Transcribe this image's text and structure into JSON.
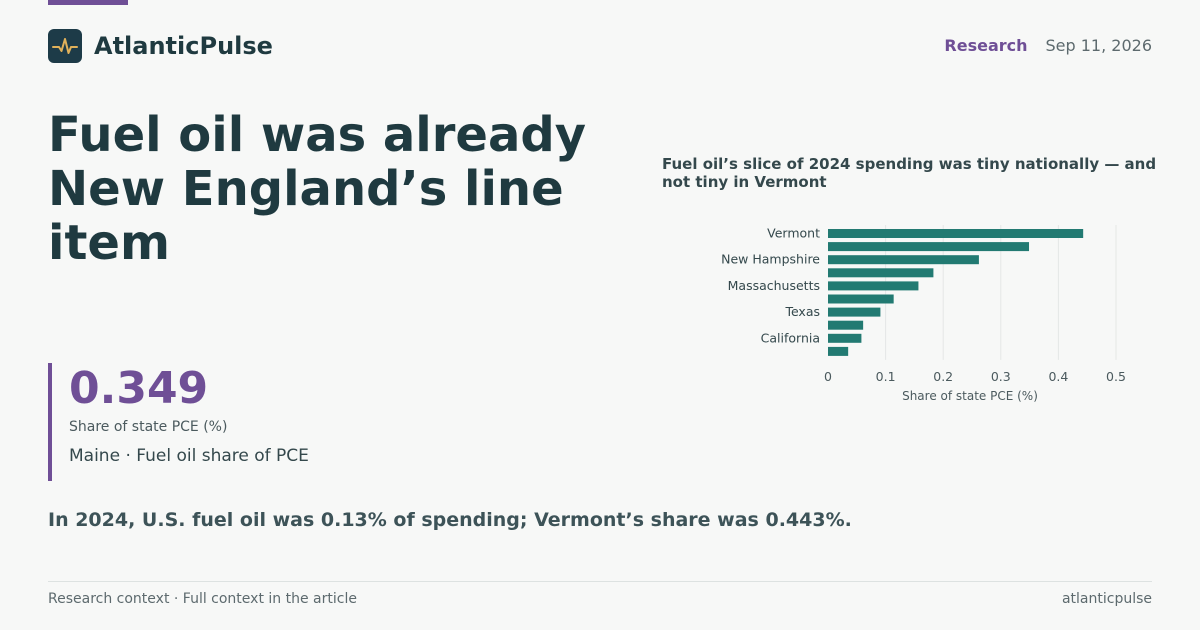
{
  "header": {
    "brand": "AtlanticPulse",
    "section": "Research",
    "date": "Sep 11, 2026",
    "logo_icon": "pulse-icon"
  },
  "headline": "Fuel oil was already New England’s line item",
  "stat": {
    "value": "0.349",
    "unit": "Share of state PCE (%)",
    "label": "Maine · Fuel oil share of PCE"
  },
  "summary": "In 2024, U.S. fuel oil was 0.13% of spending; Vermont’s share was 0.443%.",
  "footer": {
    "left": "Research context · Full context in the article",
    "right": "atlanticpulse"
  },
  "colors": {
    "accent": "#6f4f96",
    "bar": "#227a72",
    "brand_dark": "#1d3b48"
  },
  "chart_data": {
    "type": "bar",
    "orientation": "horizontal",
    "title": "Fuel oil’s slice of 2024 spending was tiny nationally — and not tiny in Vermont",
    "xlabel": "Share of state PCE (%)",
    "xlim": [
      0,
      0.5
    ],
    "xticks": [
      0,
      0.1,
      0.2,
      0.3,
      0.4,
      0.5
    ],
    "grid": true,
    "categories": [
      "Vermont",
      "",
      "New Hampshire",
      "",
      "Massachusetts",
      "",
      "Texas",
      "",
      "California",
      ""
    ],
    "values": [
      0.443,
      0.349,
      0.262,
      0.183,
      0.157,
      0.114,
      0.091,
      0.061,
      0.058,
      0.035
    ]
  }
}
